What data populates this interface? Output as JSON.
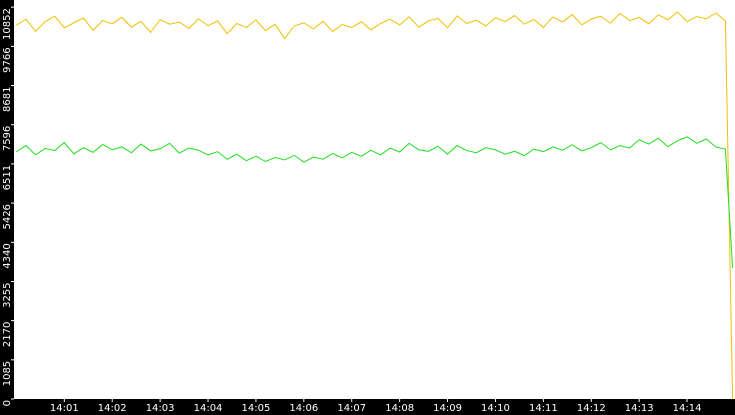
{
  "chart_data": {
    "type": "line",
    "x": [
      840.0,
      840.2,
      840.4,
      840.6,
      840.8,
      841.0,
      841.2,
      841.4,
      841.6,
      841.8,
      842.0,
      842.2,
      842.4,
      842.6,
      842.8,
      843.0,
      843.2,
      843.4,
      843.6,
      843.8,
      844.0,
      844.2,
      844.4,
      844.6,
      844.8,
      845.0,
      845.2,
      845.4,
      845.6,
      845.8,
      846.0,
      846.2,
      846.4,
      846.6,
      846.8,
      847.0,
      847.2,
      847.4,
      847.6,
      847.8,
      848.0,
      848.2,
      848.4,
      848.6,
      848.8,
      849.0,
      849.2,
      849.4,
      849.6,
      849.8,
      850.0,
      850.2,
      850.4,
      850.6,
      850.8,
      851.0,
      851.2,
      851.4,
      851.6,
      851.8,
      852.0,
      852.2,
      852.4,
      852.6,
      852.8,
      853.0,
      853.2,
      853.4,
      853.6,
      853.8,
      854.0,
      854.2,
      854.4,
      854.6,
      854.8,
      854.95
    ],
    "series": [
      {
        "color": "#f0c000",
        "values": [
          10350,
          10520,
          10180,
          10450,
          10600,
          10280,
          10420,
          10550,
          10210,
          10480,
          10390,
          10570,
          10300,
          10460,
          10150,
          10510,
          10380,
          10440,
          10260,
          10530,
          10340,
          10470,
          10120,
          10400,
          10290,
          10500,
          10200,
          10380,
          9980,
          10330,
          10420,
          10250,
          10460,
          10180,
          10370,
          10290,
          10450,
          10220,
          10400,
          10520,
          10360,
          10580,
          10300,
          10470,
          10540,
          10280,
          10610,
          10400,
          10490,
          10330,
          10560,
          10450,
          10620,
          10380,
          10510,
          10290,
          10580,
          10440,
          10650,
          10360,
          10520,
          10600,
          10410,
          10680,
          10480,
          10570,
          10390,
          10640,
          10500,
          10720,
          10450,
          10590,
          10530,
          10690,
          10470,
          0
        ]
      },
      {
        "color": "#22dd22",
        "values": [
          6850,
          7020,
          6760,
          6940,
          6880,
          7100,
          6790,
          6960,
          6830,
          7050,
          6900,
          6980,
          6820,
          7060,
          6870,
          6930,
          7080,
          6810,
          6950,
          6890,
          6760,
          6850,
          6640,
          6780,
          6600,
          6720,
          6580,
          6690,
          6620,
          6750,
          6560,
          6700,
          6640,
          6800,
          6680,
          6830,
          6720,
          6890,
          6760,
          6950,
          6840,
          7080,
          6900,
          6860,
          7000,
          6780,
          7020,
          6880,
          6820,
          6960,
          6900,
          6780,
          6860,
          6740,
          6920,
          6850,
          6980,
          6890,
          7040,
          6870,
          6960,
          7100,
          6900,
          7020,
          6950,
          7180,
          7060,
          7220,
          6990,
          7150,
          7260,
          7080,
          7200,
          6980,
          6920,
          3630
        ]
      }
    ],
    "xlim": [
      839.95,
      855.0
    ],
    "xticks": [
      {
        "value": 841,
        "label": "14:01"
      },
      {
        "value": 842,
        "label": "14:02"
      },
      {
        "value": 843,
        "label": "14:03"
      },
      {
        "value": 844,
        "label": "14:04"
      },
      {
        "value": 845,
        "label": "14:05"
      },
      {
        "value": 846,
        "label": "14:06"
      },
      {
        "value": 847,
        "label": "14:07"
      },
      {
        "value": 848,
        "label": "14:08"
      },
      {
        "value": 849,
        "label": "14:09"
      },
      {
        "value": 850,
        "label": "14:10"
      },
      {
        "value": 851,
        "label": "14:11"
      },
      {
        "value": 852,
        "label": "14:12"
      },
      {
        "value": 853,
        "label": "14:13"
      },
      {
        "value": 854,
        "label": "14:14"
      }
    ],
    "ylim": [
      0,
      11050
    ],
    "yticks": [
      0,
      1085,
      2170,
      3255,
      4340,
      5426,
      6511,
      7596,
      8681,
      9766,
      10852
    ]
  }
}
